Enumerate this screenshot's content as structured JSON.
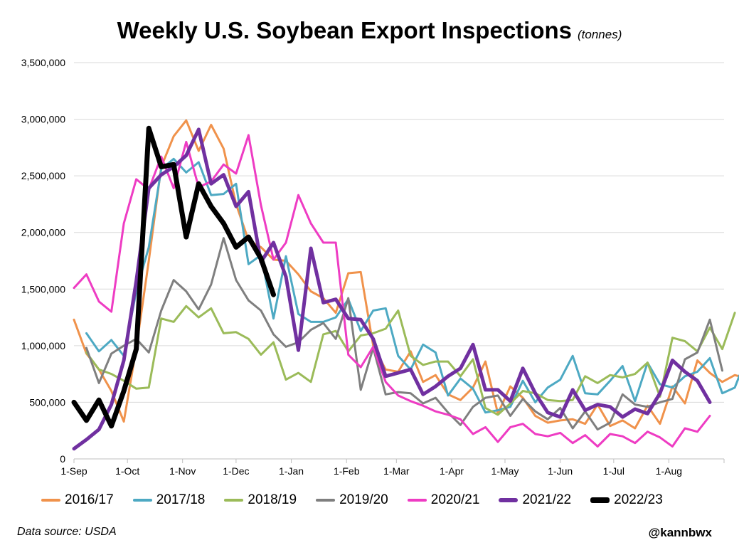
{
  "chart_data": {
    "type": "line",
    "title": "Weekly U.S. Soybean Export Inspections",
    "title_unit": "(tonnes)",
    "xlabel": "",
    "ylabel": "",
    "ylim": [
      0,
      3500000
    ],
    "y_ticks": [
      0,
      500000,
      1000000,
      1500000,
      2000000,
      2500000,
      3000000,
      3500000
    ],
    "y_tick_labels": [
      "0",
      "500,000",
      "1,000,000",
      "1,500,000",
      "2,000,000",
      "2,500,000",
      "3,000,000",
      "3,500,000"
    ],
    "x_axis": "week of marketing year, starting 1-Sep",
    "x_ticks": [
      0,
      4.29,
      8.71,
      13.0,
      17.43,
      21.86,
      25.86,
      30.29,
      34.57,
      39.0,
      43.29,
      47.71,
      52.14
    ],
    "x_tick_labels": [
      "1-Sep",
      "1-Oct",
      "1-Nov",
      "1-Dec",
      "1-Jan",
      "1-Feb",
      "1-Mar",
      "1-Apr",
      "1-May",
      "1-Jun",
      "1-Jul",
      "1-Aug",
      ""
    ],
    "grid": "horizontal",
    "legend_position": "bottom",
    "series": [
      {
        "name": "2016/17",
        "color": "#F0924B",
        "width": 3,
        "values": [
          1230000,
          930000,
          790000,
          600000,
          330000,
          980000,
          1750000,
          2580000,
          2850000,
          2990000,
          2720000,
          2950000,
          2740000,
          2250000,
          1930000,
          1870000,
          1760000,
          1750000,
          1630000,
          1480000,
          1420000,
          1290000,
          1640000,
          1650000,
          1000000,
          790000,
          770000,
          950000,
          680000,
          740000,
          570000,
          520000,
          630000,
          860000,
          400000,
          640000,
          540000,
          380000,
          320000,
          340000,
          350000,
          310000,
          480000,
          290000,
          340000,
          270000,
          470000,
          310000,
          640000,
          490000,
          870000,
          760000,
          680000,
          740000,
          710000
        ]
      },
      {
        "name": "2017/18",
        "color": "#4DA9C3",
        "width": 3,
        "values": [
          null,
          1110000,
          950000,
          1050000,
          910000,
          1480000,
          1870000,
          2560000,
          2650000,
          2530000,
          2620000,
          2330000,
          2340000,
          2430000,
          1720000,
          1800000,
          1240000,
          1790000,
          1280000,
          1210000,
          1210000,
          1250000,
          1410000,
          1130000,
          1310000,
          1330000,
          910000,
          790000,
          1010000,
          940000,
          560000,
          710000,
          620000,
          410000,
          430000,
          460000,
          690000,
          500000,
          630000,
          700000,
          910000,
          580000,
          570000,
          690000,
          820000,
          510000,
          850000,
          660000,
          630000,
          730000,
          770000,
          890000,
          580000,
          630000,
          910000,
          780000
        ]
      },
      {
        "name": "2018/19",
        "color": "#9BBB59",
        "width": 3,
        "values": [
          null,
          940000,
          790000,
          750000,
          690000,
          620000,
          630000,
          1240000,
          1210000,
          1350000,
          1250000,
          1330000,
          1110000,
          1120000,
          1060000,
          920000,
          1030000,
          700000,
          760000,
          680000,
          1100000,
          1130000,
          950000,
          1090000,
          1110000,
          1150000,
          1310000,
          910000,
          830000,
          860000,
          860000,
          730000,
          880000,
          450000,
          390000,
          490000,
          600000,
          580000,
          520000,
          510000,
          520000,
          730000,
          670000,
          740000,
          720000,
          750000,
          850000,
          550000,
          1070000,
          1040000,
          950000,
          1160000,
          970000,
          1290000
        ]
      },
      {
        "name": "2019/20",
        "color": "#7F7F7F",
        "width": 3,
        "values": [
          null,
          980000,
          670000,
          930000,
          1000000,
          1060000,
          940000,
          1310000,
          1580000,
          1480000,
          1320000,
          1540000,
          1950000,
          1580000,
          1400000,
          1310000,
          1100000,
          990000,
          1030000,
          1140000,
          1200000,
          1060000,
          1420000,
          610000,
          980000,
          570000,
          590000,
          580000,
          490000,
          540000,
          410000,
          300000,
          460000,
          540000,
          560000,
          380000,
          530000,
          420000,
          350000,
          450000,
          270000,
          420000,
          260000,
          320000,
          570000,
          480000,
          460000,
          500000,
          530000,
          880000,
          940000,
          1230000,
          780000
        ]
      },
      {
        "name": "2020/21",
        "color": "#EE3CC3",
        "width": 3,
        "values": [
          1510000,
          1630000,
          1390000,
          1300000,
          2080000,
          2470000,
          2380000,
          2670000,
          2390000,
          2800000,
          2400000,
          2450000,
          2600000,
          2520000,
          2860000,
          2240000,
          1760000,
          1910000,
          2330000,
          2080000,
          1910000,
          1910000,
          920000,
          810000,
          990000,
          680000,
          560000,
          510000,
          470000,
          420000,
          390000,
          350000,
          220000,
          280000,
          150000,
          280000,
          310000,
          220000,
          200000,
          230000,
          140000,
          210000,
          110000,
          220000,
          200000,
          140000,
          240000,
          190000,
          110000,
          270000,
          240000,
          380000
        ]
      },
      {
        "name": "2021/22",
        "color": "#7030A0",
        "width": 5,
        "values": [
          90000,
          170000,
          260000,
          480000,
          870000,
          1570000,
          2390000,
          2510000,
          2580000,
          2680000,
          2910000,
          2430000,
          2510000,
          2230000,
          2360000,
          1740000,
          1910000,
          1610000,
          960000,
          1860000,
          1380000,
          1410000,
          1240000,
          1230000,
          1060000,
          730000,
          760000,
          790000,
          570000,
          640000,
          730000,
          800000,
          1010000,
          610000,
          610000,
          510000,
          800000,
          580000,
          410000,
          370000,
          610000,
          430000,
          480000,
          460000,
          370000,
          440000,
          400000,
          580000,
          870000,
          770000,
          690000,
          500000
        ]
      },
      {
        "name": "2022/23",
        "color": "#000000",
        "width": 7,
        "values": [
          500000,
          340000,
          520000,
          290000,
          600000,
          970000,
          2920000,
          2580000,
          2600000,
          1960000,
          2430000,
          2230000,
          2080000,
          1870000,
          1960000,
          1770000,
          1450000
        ]
      }
    ]
  },
  "footer": {
    "source": "Data source: USDA",
    "handle": "@kannbwx"
  }
}
